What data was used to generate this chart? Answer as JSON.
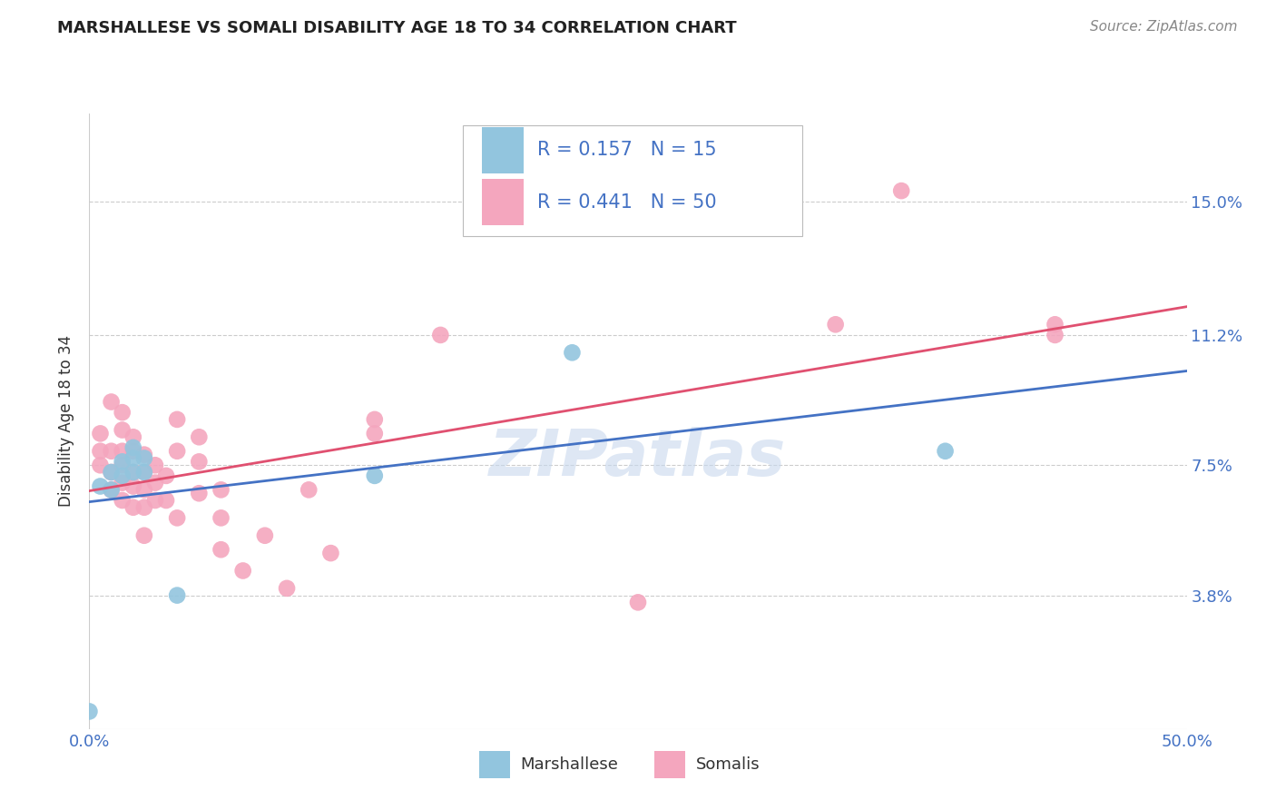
{
  "title": "MARSHALLESE VS SOMALI DISABILITY AGE 18 TO 34 CORRELATION CHART",
  "source": "Source: ZipAtlas.com",
  "ylabel": "Disability Age 18 to 34",
  "xlim": [
    0.0,
    0.5
  ],
  "ylim": [
    0.0,
    0.175
  ],
  "yticks": [
    0.038,
    0.075,
    0.112,
    0.15
  ],
  "ytick_labels": [
    "3.8%",
    "7.5%",
    "11.2%",
    "15.0%"
  ],
  "xticks": [
    0.0,
    0.1,
    0.2,
    0.3,
    0.4,
    0.5
  ],
  "marshallese_R": "0.157",
  "marshallese_N": "15",
  "somali_R": "0.441",
  "somali_N": "50",
  "blue_color": "#92c5de",
  "pink_color": "#f4a6be",
  "trend_blue": "#4472c4",
  "trend_pink": "#e05070",
  "label_color": "#4472c4",
  "text_color": "#333333",
  "grid_color": "#cccccc",
  "watermark": "ZIPatlas",
  "marshallese_x": [
    0.0,
    0.005,
    0.01,
    0.01,
    0.015,
    0.015,
    0.02,
    0.02,
    0.02,
    0.025,
    0.025,
    0.04,
    0.13,
    0.22,
    0.39
  ],
  "marshallese_y": [
    0.005,
    0.069,
    0.068,
    0.073,
    0.072,
    0.076,
    0.073,
    0.077,
    0.08,
    0.073,
    0.077,
    0.038,
    0.072,
    0.107,
    0.079
  ],
  "somali_x": [
    0.005,
    0.005,
    0.005,
    0.01,
    0.01,
    0.01,
    0.01,
    0.015,
    0.015,
    0.015,
    0.015,
    0.015,
    0.015,
    0.02,
    0.02,
    0.02,
    0.02,
    0.02,
    0.025,
    0.025,
    0.025,
    0.025,
    0.025,
    0.03,
    0.03,
    0.03,
    0.035,
    0.035,
    0.04,
    0.04,
    0.04,
    0.05,
    0.05,
    0.05,
    0.06,
    0.06,
    0.06,
    0.07,
    0.08,
    0.09,
    0.1,
    0.11,
    0.13,
    0.13,
    0.16,
    0.25,
    0.34,
    0.37,
    0.44,
    0.44
  ],
  "somali_y": [
    0.075,
    0.079,
    0.084,
    0.068,
    0.073,
    0.079,
    0.093,
    0.065,
    0.07,
    0.075,
    0.079,
    0.085,
    0.09,
    0.063,
    0.069,
    0.073,
    0.079,
    0.083,
    0.055,
    0.063,
    0.068,
    0.073,
    0.078,
    0.065,
    0.07,
    0.075,
    0.065,
    0.072,
    0.06,
    0.079,
    0.088,
    0.067,
    0.076,
    0.083,
    0.051,
    0.06,
    0.068,
    0.045,
    0.055,
    0.04,
    0.068,
    0.05,
    0.084,
    0.088,
    0.112,
    0.036,
    0.115,
    0.153,
    0.115,
    0.112
  ]
}
